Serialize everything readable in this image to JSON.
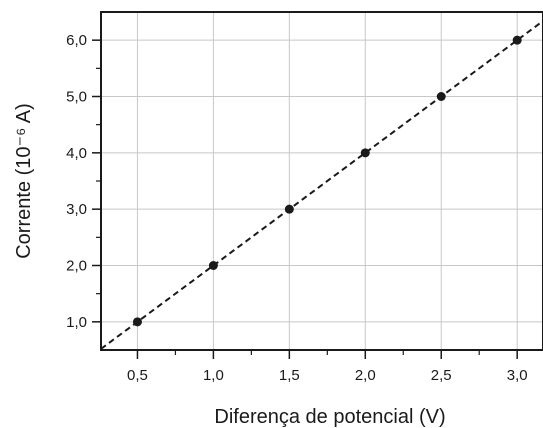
{
  "chart_data": {
    "type": "scatter",
    "title": "",
    "xlabel": "Diferença de potencial (V)",
    "ylabel": "Corrente (10⁻⁶ A)",
    "x": [
      0.5,
      1.0,
      1.5,
      2.0,
      2.5,
      3.0
    ],
    "y": [
      1.0,
      2.0,
      3.0,
      4.0,
      5.0,
      6.0
    ],
    "x_ticks": [
      "0,5",
      "1,0",
      "1,5",
      "2,0",
      "2,5",
      "3,0"
    ],
    "y_ticks": [
      "1,0",
      "2,0",
      "3,0",
      "4,0",
      "5,0",
      "6,0"
    ],
    "xlim": [
      0.26,
      3.17
    ],
    "ylim": [
      0.5,
      6.5
    ],
    "grid": true,
    "trendline": {
      "style": "dashed",
      "slope": 2,
      "intercept": 0
    },
    "colors": {
      "points": "#1a1a1a",
      "line": "#1a1a1a",
      "grid": "#c8c8c8"
    }
  }
}
